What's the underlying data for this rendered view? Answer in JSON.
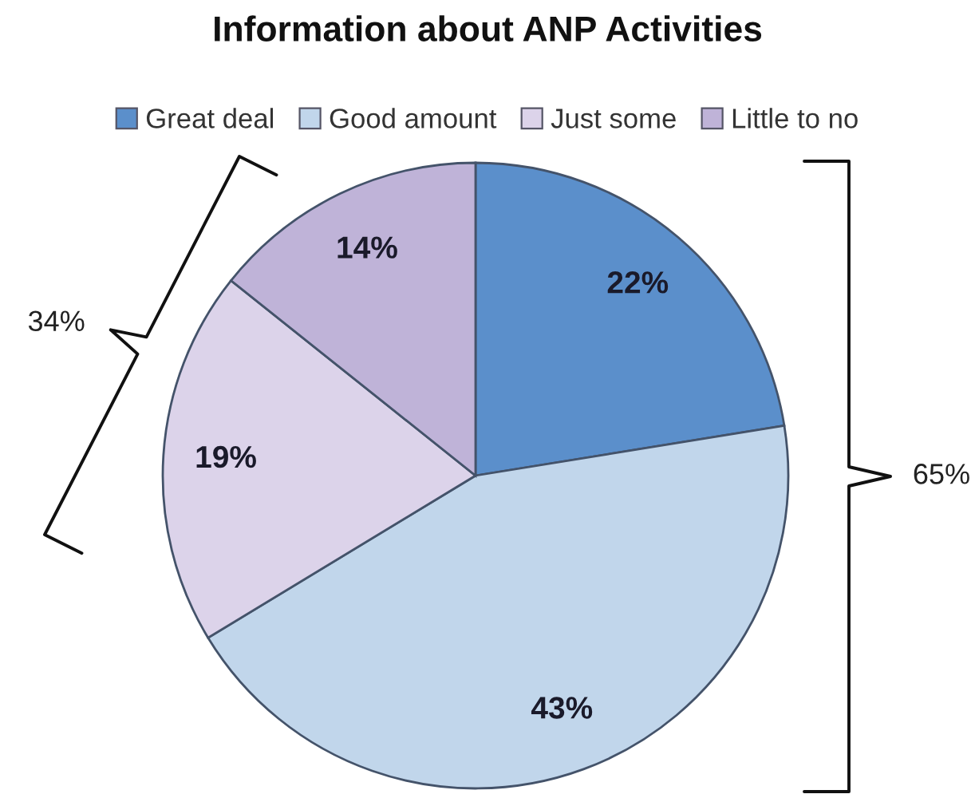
{
  "chart_data": {
    "type": "pie",
    "title": "Information about ANP Activities",
    "categories": [
      "Great deal",
      "Good amount",
      "Just some",
      "Little to no"
    ],
    "values": [
      22,
      43,
      19,
      14
    ],
    "colors": [
      "#5b8fcb",
      "#c1d6eb",
      "#dcd3ea",
      "#bfb3d8"
    ],
    "value_labels": [
      "22%",
      "43%",
      "19%",
      "14%"
    ],
    "legend": "top",
    "annotations": [
      "34%",
      "65%"
    ]
  }
}
